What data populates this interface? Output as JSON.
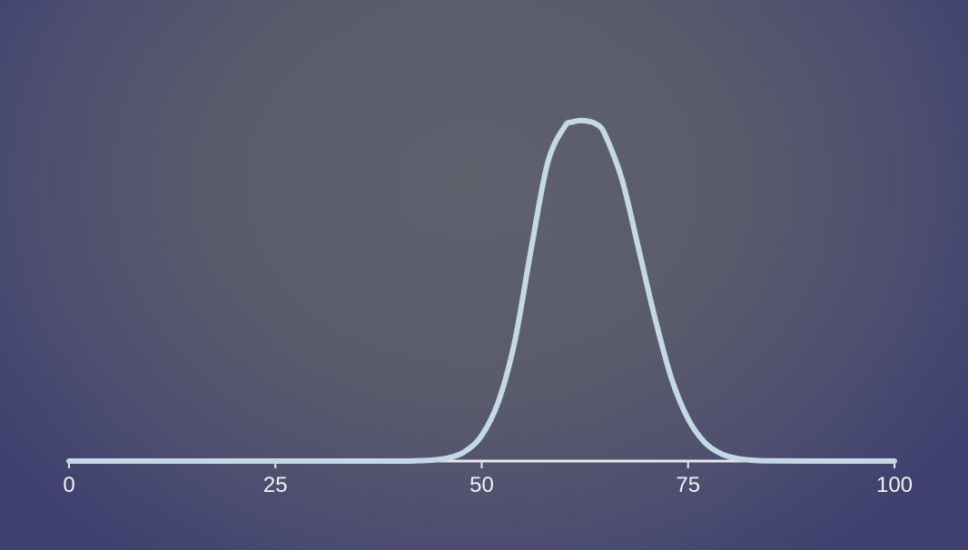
{
  "chart_data": {
    "type": "line",
    "title": "",
    "xlabel": "",
    "ylabel": "",
    "xlim": [
      0,
      100
    ],
    "x_ticks": [
      0,
      25,
      50,
      75,
      100
    ],
    "x_tick_labels": [
      "0",
      "25",
      "50",
      "75",
      "100"
    ],
    "grid": false,
    "legend": "none",
    "series": [
      {
        "x": [
          0,
          10,
          20,
          30,
          40,
          42,
          44,
          46,
          48,
          50,
          52,
          54,
          56,
          58,
          60,
          61,
          62.5,
          64,
          65,
          67,
          69,
          71,
          73,
          75,
          77,
          79,
          81,
          83,
          85,
          90,
          100
        ],
        "y": [
          0,
          0,
          0,
          0,
          0.0001,
          0.0007,
          0.0028,
          0.0096,
          0.0286,
          0.0752,
          0.1733,
          0.3513,
          0.6246,
          0.8774,
          0.981,
          0.9964,
          1.0,
          0.9884,
          0.956,
          0.8266,
          0.6246,
          0.4187,
          0.2419,
          0.124,
          0.0553,
          0.0214,
          0.0072,
          0.0021,
          0.0005,
          0,
          0
        ]
      }
    ],
    "colors": {
      "curve": "#c4d9e6",
      "axis": "#e6e6ee",
      "tick_label": "#f2f2f6",
      "bg_center": "#5f616d",
      "bg_edge": "#3f406f"
    }
  }
}
